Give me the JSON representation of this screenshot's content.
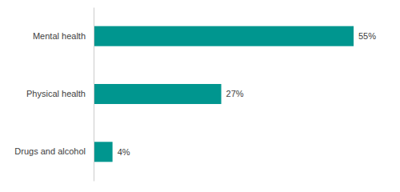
{
  "chart_data": {
    "type": "bar",
    "orientation": "horizontal",
    "categories": [
      "Mental health",
      "Physical health",
      "Drugs and alcohol"
    ],
    "values": [
      55,
      27,
      4
    ],
    "value_labels": [
      "55%",
      "27%",
      "4%"
    ],
    "color": "#00968f",
    "data_labels": true,
    "tick_labels": "y"
  }
}
